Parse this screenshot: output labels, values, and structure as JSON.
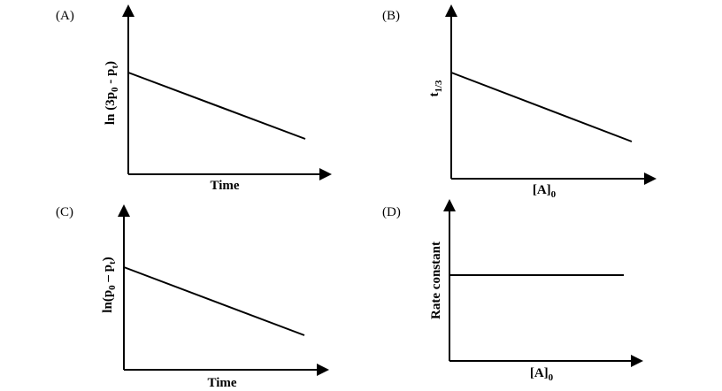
{
  "panels": [
    {
      "label": "(A)",
      "xlabel": "Time",
      "ylabel": {
        "pre": "ln (3p",
        "sub1": "0",
        "mid": " - p",
        "sub2": "t",
        "post": ")"
      },
      "trend": "decreasing"
    },
    {
      "label": "(B)",
      "xlabel": {
        "main": "[A]",
        "sub": "0"
      },
      "ylabel": {
        "main": "t",
        "sub": "1/3"
      },
      "trend": "decreasing"
    },
    {
      "label": "(C)",
      "xlabel": "Time",
      "ylabel": {
        "pre": "ln(p",
        "sub1": "0",
        "mid": " – p",
        "sub2": "t",
        "post": ")"
      },
      "trend": "decreasing"
    },
    {
      "label": "(D)",
      "xlabel": {
        "main": "[A]",
        "sub": "0"
      },
      "ylabel": "Rate constant",
      "trend": "constant"
    }
  ]
}
